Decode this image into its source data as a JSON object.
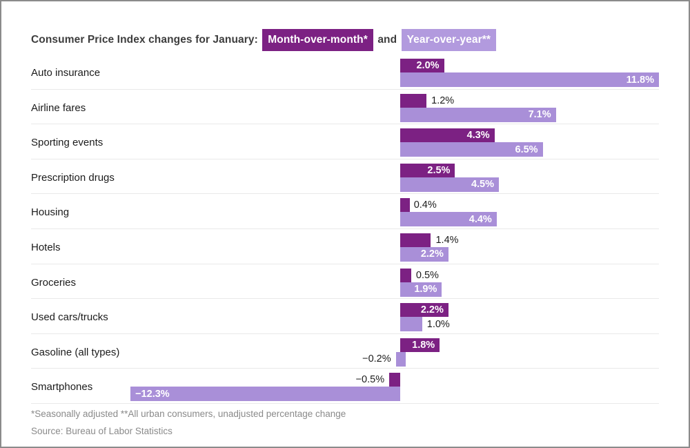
{
  "title": {
    "prefix": "Consumer Price Index changes for January:",
    "series1_label": "Month-over-month*",
    "conjunction": "and",
    "series2_label": "Year-over-year**"
  },
  "footnotes": {
    "note": "*Seasonally adjusted **All urban consumers, unadjusted percentage change",
    "source": "Source: Bureau of Labor Statistics"
  },
  "colors": {
    "month_over_month_bar": "#7c2183",
    "year_over_year_bar": "#a98fd8",
    "legend_mom_chip": "#7c2183",
    "legend_yoy_chip": "#b29ade",
    "row_separator": "#e9e9e9",
    "page_border": "#8b8b8b"
  },
  "chart_data": {
    "type": "bar",
    "orientation": "horizontal",
    "unit": "%",
    "baseline": 0,
    "axis": "hidden",
    "legend_position": "in-title",
    "value_range": [
      -12.3,
      11.8
    ],
    "categories": [
      "Auto insurance",
      "Airline fares",
      "Sporting events",
      "Prescription drugs",
      "Housing",
      "Hotels",
      "Groceries",
      "Used cars/trucks",
      "Gasoline (all types)",
      "Smartphones"
    ],
    "series": [
      {
        "name": "Month-over-month*",
        "color": "#7c2183",
        "values": [
          2.0,
          1.2,
          4.3,
          2.5,
          0.4,
          1.4,
          0.5,
          2.2,
          1.8,
          -0.5
        ],
        "labels": [
          "2.0%",
          "1.2%",
          "4.3%",
          "2.5%",
          "0.4%",
          "1.4%",
          "0.5%",
          "2.2%",
          "1.8%",
          "−0.5%"
        ]
      },
      {
        "name": "Year-over-year**",
        "color": "#a98fd8",
        "values": [
          11.8,
          7.1,
          6.5,
          4.5,
          4.4,
          2.2,
          1.9,
          1.0,
          -0.2,
          -12.3
        ],
        "labels": [
          "11.8%",
          "7.1%",
          "6.5%",
          "4.5%",
          "4.4%",
          "2.2%",
          "1.9%",
          "1.0%",
          "−0.2%",
          "−12.3%"
        ]
      }
    ]
  }
}
